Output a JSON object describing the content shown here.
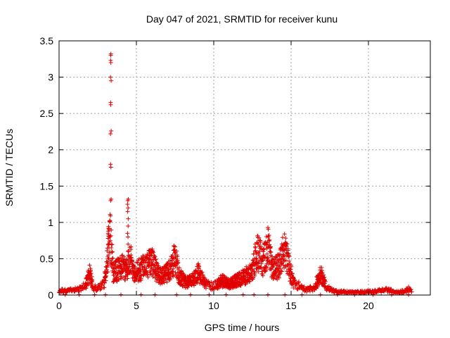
{
  "chart_data": {
    "type": "scatter",
    "title": "Day 047 of 2021, SRMTID for receiver kunu",
    "xlabel": "GPS time / hours",
    "ylabel": "SRMTID / TECUs",
    "xlim": [
      0,
      24
    ],
    "ylim": [
      0,
      3.5
    ],
    "xticks": [
      0,
      5,
      10,
      15,
      20
    ],
    "yticks": [
      0,
      0.5,
      1,
      1.5,
      2,
      2.5,
      3,
      3.5
    ],
    "xtick_labels": [
      "0",
      "5",
      "10",
      "15",
      "20"
    ],
    "ytick_labels": [
      "0",
      "0.5",
      "1",
      "1.5",
      "2",
      "2.5",
      "3",
      "3.5"
    ],
    "grid": true,
    "marker": "plus",
    "color": "#e00000",
    "profile": [
      [
        0.0,
        0.06
      ],
      [
        0.5,
        0.06
      ],
      [
        1.0,
        0.07
      ],
      [
        1.5,
        0.09
      ],
      [
        1.8,
        0.18
      ],
      [
        2.0,
        0.3
      ],
      [
        2.2,
        0.1
      ],
      [
        2.6,
        0.1
      ],
      [
        2.9,
        0.15
      ],
      [
        3.1,
        0.45
      ],
      [
        3.3,
        0.9
      ],
      [
        3.5,
        0.3
      ],
      [
        3.8,
        0.35
      ],
      [
        4.0,
        0.4
      ],
      [
        4.3,
        0.35
      ],
      [
        4.6,
        0.5
      ],
      [
        4.9,
        0.3
      ],
      [
        5.2,
        0.35
      ],
      [
        5.6,
        0.4
      ],
      [
        6.0,
        0.45
      ],
      [
        6.5,
        0.25
      ],
      [
        7.0,
        0.3
      ],
      [
        7.5,
        0.5
      ],
      [
        7.8,
        0.25
      ],
      [
        8.2,
        0.18
      ],
      [
        8.6,
        0.2
      ],
      [
        9.0,
        0.3
      ],
      [
        9.5,
        0.15
      ],
      [
        10.0,
        0.12
      ],
      [
        10.5,
        0.2
      ],
      [
        11.0,
        0.15
      ],
      [
        11.5,
        0.2
      ],
      [
        12.0,
        0.25
      ],
      [
        12.5,
        0.35
      ],
      [
        12.8,
        0.6
      ],
      [
        13.2,
        0.45
      ],
      [
        13.5,
        0.65
      ],
      [
        13.8,
        0.35
      ],
      [
        14.2,
        0.4
      ],
      [
        14.6,
        0.65
      ],
      [
        14.9,
        0.35
      ],
      [
        15.2,
        0.15
      ],
      [
        15.6,
        0.12
      ],
      [
        16.0,
        0.07
      ],
      [
        16.5,
        0.1
      ],
      [
        16.9,
        0.3
      ],
      [
        17.3,
        0.1
      ],
      [
        17.8,
        0.05
      ],
      [
        18.5,
        0.04
      ],
      [
        19.5,
        0.04
      ],
      [
        20.5,
        0.05
      ],
      [
        21.2,
        0.07
      ],
      [
        21.8,
        0.04
      ],
      [
        22.3,
        0.05
      ],
      [
        22.6,
        0.08
      ],
      [
        22.8,
        0.05
      ]
    ],
    "spikes": [
      {
        "x": 3.35,
        "values": [
          1.3,
          1.32,
          1.76,
          1.8,
          2.22,
          2.26,
          2.62,
          2.65,
          2.95,
          3.0,
          3.2,
          3.23,
          3.3,
          3.32
        ]
      },
      {
        "x": 4.45,
        "values": [
          0.6,
          0.7,
          0.8,
          0.85,
          0.95,
          1.05,
          1.15,
          1.2,
          1.25,
          1.3,
          1.32
        ]
      },
      {
        "x": 3.2,
        "values": [
          0.5,
          0.55,
          0.65,
          0.7,
          0.78,
          0.85,
          0.88,
          0.9,
          0.92
        ]
      }
    ]
  }
}
